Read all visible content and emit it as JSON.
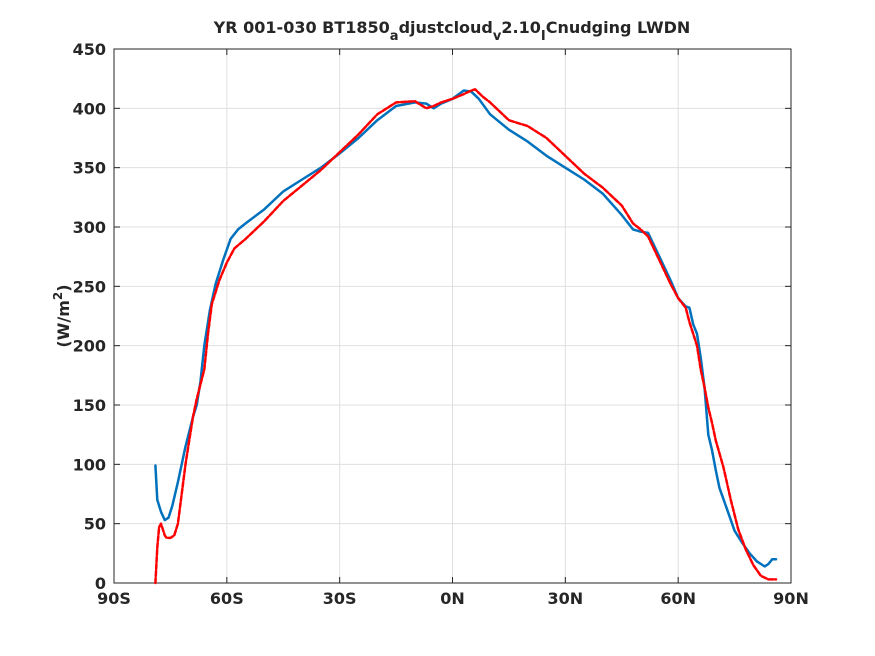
{
  "chart_data": {
    "type": "line",
    "title": "YR 001-030 BT1850",
    "title_parts": [
      {
        "text": "YR 001-030 BT1850",
        "sub": false
      },
      {
        "text": "a",
        "sub": true
      },
      {
        "text": "djustcloud",
        "sub": false
      },
      {
        "text": "v",
        "sub": true
      },
      {
        "text": "2.10",
        "sub": false
      },
      {
        "text": "I",
        "sub": true
      },
      {
        "text": "Cnudging LWDN",
        "sub": false
      }
    ],
    "ylabel": "(W/m",
    "ylabel_sup": "2",
    "ylabel_close": ")",
    "xlim": [
      -90,
      90
    ],
    "ylim": [
      0,
      450
    ],
    "xticks": [
      -90,
      -60,
      -30,
      0,
      30,
      60,
      90
    ],
    "xtick_labels": [
      "90S",
      "60S",
      "30S",
      "0N",
      "30N",
      "60N",
      "90N"
    ],
    "yticks": [
      0,
      50,
      100,
      150,
      200,
      250,
      300,
      350,
      400,
      450
    ],
    "ytick_labels": [
      "0",
      "50",
      "100",
      "150",
      "200",
      "250",
      "300",
      "350",
      "400",
      "450"
    ],
    "grid": true,
    "legend": "none",
    "series": [
      {
        "color": "#0072bd",
        "style": "solid",
        "x": [
          -79,
          -78.5,
          -77.5,
          -76.5,
          -75.5,
          -74.5,
          -73,
          -71,
          -69,
          -68,
          -67,
          -66,
          -64.5,
          -63,
          -61,
          -59,
          -57,
          -55,
          -50,
          -45,
          -40,
          -35,
          -30,
          -25,
          -20,
          -15,
          -10,
          -7,
          -5,
          -3,
          0,
          3,
          5,
          7,
          10,
          15,
          20,
          25,
          30,
          35,
          40,
          45,
          48,
          50,
          52,
          55,
          58,
          60,
          62,
          63,
          64,
          65,
          66,
          67,
          68,
          69,
          70,
          71,
          73,
          75,
          77,
          79,
          81,
          83,
          84,
          85,
          86
        ],
        "values": [
          99,
          70,
          60,
          53,
          55,
          65,
          85,
          115,
          140,
          150,
          170,
          200,
          230,
          252,
          272,
          290,
          298,
          303,
          315,
          330,
          340,
          350,
          362,
          375,
          390,
          402,
          405,
          404,
          400,
          404,
          408,
          415,
          414,
          408,
          395,
          382,
          372,
          360,
          350,
          340,
          328,
          310,
          298,
          296,
          295,
          275,
          255,
          240,
          233,
          232,
          218,
          210,
          190,
          165,
          125,
          112,
          95,
          80,
          62,
          44,
          34,
          25,
          18,
          14,
          16,
          20,
          20
        ]
      },
      {
        "color": "#ff0000",
        "style": "dashed",
        "x": [
          -79,
          -78.5,
          -78,
          -77.5,
          -77,
          -76.5,
          -76,
          -75,
          -74,
          -73,
          -72,
          -71,
          -70,
          -69,
          -68,
          -66,
          -65,
          -64,
          -62,
          -60,
          -58,
          -55,
          -50,
          -45,
          -40,
          -35,
          -30,
          -25,
          -20,
          -15,
          -10,
          -7,
          -5,
          -3,
          0,
          3,
          5,
          6,
          8,
          10,
          15,
          20,
          25,
          30,
          35,
          40,
          45,
          48,
          50,
          52,
          55,
          58,
          60,
          62,
          63,
          64,
          65,
          66,
          67,
          68,
          69,
          70,
          72,
          74,
          76,
          78,
          80,
          82,
          84,
          85,
          86
        ],
        "values": [
          0,
          30,
          47,
          50,
          45,
          40,
          38,
          38,
          40,
          50,
          75,
          100,
          120,
          140,
          155,
          180,
          210,
          235,
          255,
          270,
          282,
          290,
          305,
          322,
          335,
          348,
          363,
          378,
          395,
          405,
          406,
          400,
          402,
          405,
          408,
          412,
          415,
          416,
          410,
          405,
          390,
          385,
          375,
          360,
          345,
          333,
          318,
          303,
          298,
          292,
          272,
          252,
          240,
          232,
          220,
          210,
          200,
          180,
          165,
          148,
          135,
          120,
          98,
          70,
          45,
          28,
          15,
          6,
          3,
          3,
          3
        ]
      }
    ]
  }
}
